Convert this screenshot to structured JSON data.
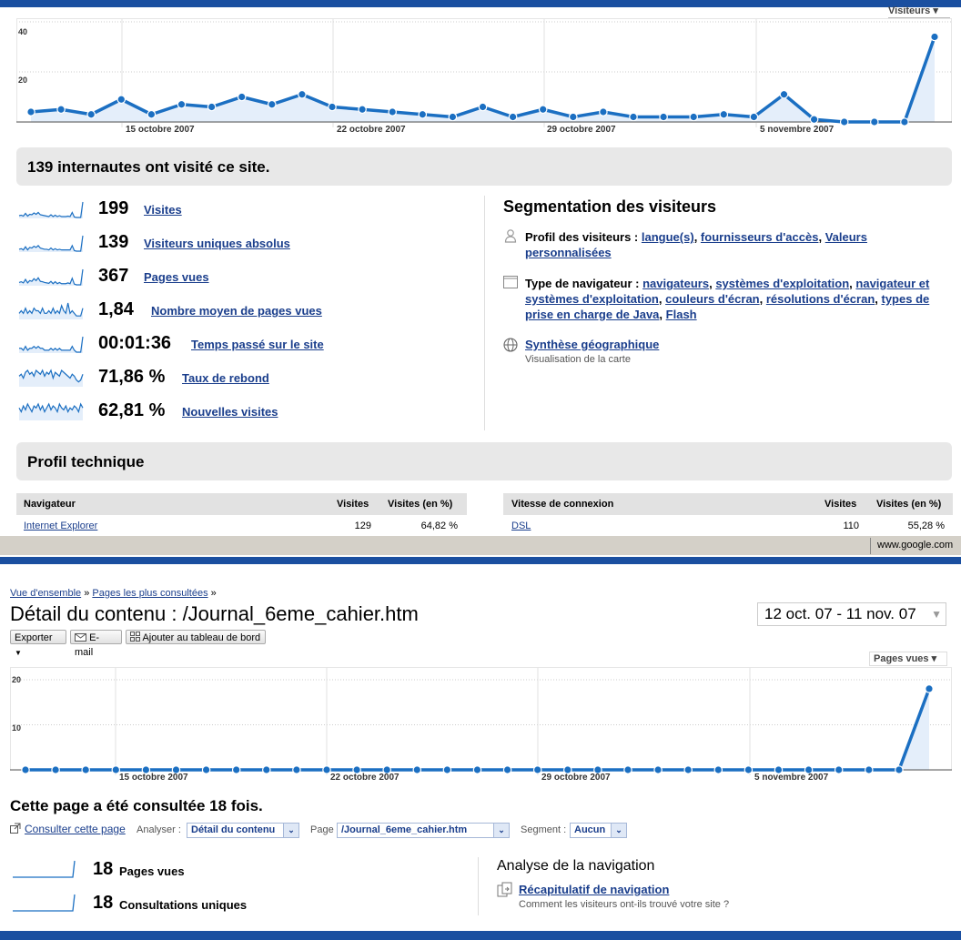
{
  "top": {
    "visitors_dropdown": "Visiteurs",
    "y_ticks": [
      "40",
      "20"
    ],
    "x_ticks": [
      "15 octobre 2007",
      "22 octobre 2007",
      "29 octobre 2007",
      "5 novembre 2007"
    ],
    "summary_header": "139 internautes ont visité ce site.",
    "metrics": [
      {
        "value": "199",
        "label": "Visites"
      },
      {
        "value": "139",
        "label": "Visiteurs uniques absolus"
      },
      {
        "value": "367",
        "label": "Pages vues"
      },
      {
        "value": "1,84",
        "label": "Nombre moyen de pages vues"
      },
      {
        "value": "00:01:36",
        "label": "Temps passé sur le site"
      },
      {
        "value": "71,86 %",
        "label": "Taux de rebond"
      },
      {
        "value": "62,81 %",
        "label": "Nouvelles visites"
      }
    ],
    "segmentation": {
      "title": "Segmentation des visiteurs",
      "profil_label": "Profil des visiteurs :",
      "profil_links": [
        "langue(s)",
        "fournisseurs d'accès",
        "Valeurs personnalisées"
      ],
      "nav_label": "Type de navigateur :",
      "nav_links": [
        "navigateurs",
        "systèmes d'exploitation",
        "navigateur et systèmes d'exploitation",
        "couleurs d'écran",
        "résolutions d'écran",
        "types de prise en charge de Java",
        "Flash"
      ],
      "geo_link": "Synthèse géographique",
      "geo_sub": "Visualisation de la carte"
    },
    "tech_header": "Profil technique",
    "table_left": {
      "col1": "Navigateur",
      "col2": "Visites",
      "col3": "Visites (en %)",
      "row": {
        "name": "Internet Explorer",
        "visits": "129",
        "pct": "64,82 %"
      }
    },
    "table_right": {
      "col1": "Vitesse de connexion",
      "col2": "Visites",
      "col3": "Visites (en %)",
      "row": {
        "name": "DSL",
        "visits": "110",
        "pct": "55,28 %"
      }
    },
    "status_url": "www.google.com"
  },
  "bottom": {
    "breadcrumb": [
      "Vue d'ensemble",
      "Pages les plus consultées"
    ],
    "title": "Détail du contenu : /Journal_6eme_cahier.htm",
    "date_range": "12 oct. 07 - 11 nov. 07",
    "buttons": {
      "export": "Exporter",
      "email": "E-mail",
      "dashboard": "Ajouter au tableau de bord"
    },
    "pageviews_dropdown": "Pages vues",
    "y_ticks": [
      "20",
      "10"
    ],
    "x_ticks": [
      "15 octobre 2007",
      "22 octobre 2007",
      "29 octobre 2007",
      "5 novembre 2007"
    ],
    "summary": "Cette page a été consultée 18 fois.",
    "view_page_link": "Consulter cette page",
    "analyze_label": "Analyser :",
    "analyze_value": "Détail du contenu",
    "page_label": "Page",
    "page_value": "/Journal_6eme_cahier.htm",
    "segment_label": "Segment :",
    "segment_value": "Aucun",
    "metrics": [
      {
        "value": "18",
        "label": "Pages vues"
      },
      {
        "value": "18",
        "label": "Consultations uniques"
      }
    ],
    "nav_analysis": {
      "title": "Analyse de la navigation",
      "link": "Récapitulatif de navigation",
      "sub": "Comment les visiteurs ont-ils trouvé votre site ?"
    }
  },
  "chart_data": [
    {
      "type": "line",
      "series": [
        {
          "name": "Visiteurs",
          "values": [
            4,
            5,
            3,
            9,
            3,
            7,
            6,
            10,
            7,
            11,
            6,
            5,
            4,
            3,
            2,
            6,
            2,
            5,
            2,
            4,
            2,
            2,
            2,
            3,
            2,
            11,
            1,
            0,
            0,
            0,
            34
          ]
        }
      ],
      "x": [
        "12 oct",
        "13 oct",
        "14 oct",
        "15 oct",
        "16 oct",
        "17 oct",
        "18 oct",
        "19 oct",
        "20 oct",
        "21 oct",
        "22 oct",
        "23 oct",
        "24 oct",
        "25 oct",
        "26 oct",
        "27 oct",
        "28 oct",
        "29 oct",
        "30 oct",
        "31 oct",
        "1 nov",
        "2 nov",
        "3 nov",
        "4 nov",
        "5 nov",
        "6 nov",
        "7 nov",
        "8 nov",
        "9 nov",
        "10 nov",
        "11 nov"
      ],
      "ylim": [
        0,
        40
      ],
      "yticks": [
        20,
        40
      ],
      "xticks": [
        "15 octobre 2007",
        "22 octobre 2007",
        "29 octobre 2007",
        "5 novembre 2007"
      ]
    },
    {
      "type": "line",
      "series": [
        {
          "name": "Pages vues",
          "values": [
            0,
            0,
            0,
            0,
            0,
            0,
            0,
            0,
            0,
            0,
            0,
            0,
            0,
            0,
            0,
            0,
            0,
            0,
            0,
            0,
            0,
            0,
            0,
            0,
            0,
            0,
            0,
            0,
            0,
            0,
            18
          ]
        }
      ],
      "x": [
        "12 oct",
        "13 oct",
        "14 oct",
        "15 oct",
        "16 oct",
        "17 oct",
        "18 oct",
        "19 oct",
        "20 oct",
        "21 oct",
        "22 oct",
        "23 oct",
        "24 oct",
        "25 oct",
        "26 oct",
        "27 oct",
        "28 oct",
        "29 oct",
        "30 oct",
        "31 oct",
        "1 nov",
        "2 nov",
        "3 nov",
        "4 nov",
        "5 nov",
        "6 nov",
        "7 nov",
        "8 nov",
        "9 nov",
        "10 nov",
        "11 nov"
      ],
      "ylim": [
        0,
        20
      ],
      "yticks": [
        10,
        20
      ],
      "xticks": [
        "15 octobre 2007",
        "22 octobre 2007",
        "29 octobre 2007",
        "5 novembre 2007"
      ]
    }
  ]
}
